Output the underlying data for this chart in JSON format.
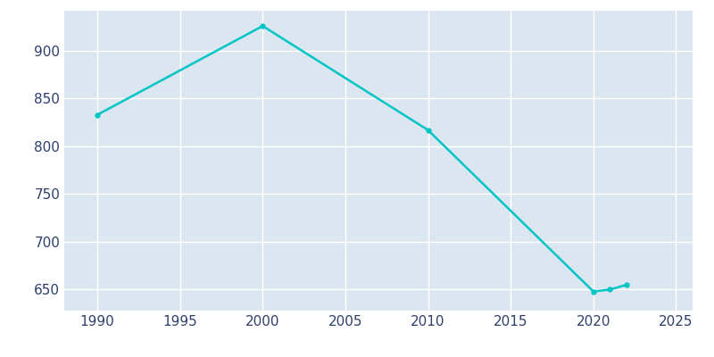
{
  "years": [
    1990,
    2000,
    2010,
    2020,
    2021,
    2022
  ],
  "population": [
    833,
    926,
    817,
    648,
    650,
    655
  ],
  "line_color": "#00C5C5",
  "marker": "o",
  "marker_size": 3.5,
  "bg_color": "#DCE6F0",
  "plot_bg_color": "#DCE6F0",
  "outer_bg": "#FFFFFF",
  "xlim": [
    1988,
    2026
  ],
  "ylim": [
    628,
    942
  ],
  "xticks": [
    1990,
    1995,
    2000,
    2005,
    2010,
    2015,
    2020,
    2025
  ],
  "yticks": [
    650,
    700,
    750,
    800,
    850,
    900
  ],
  "grid_color": "#FFFFFF",
  "tick_color": "#2E3F6E",
  "tick_fontsize": 11
}
